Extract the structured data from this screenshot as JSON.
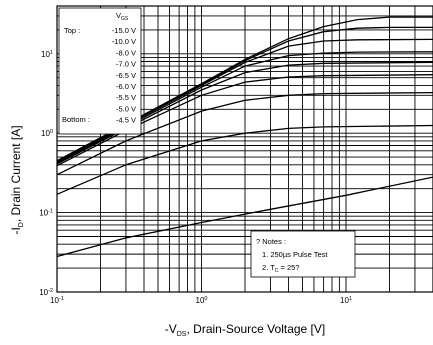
{
  "chart_data": {
    "type": "line",
    "title": "",
    "xlabel": {
      "prefix": "-V",
      "sub": "DS",
      "suffix": ", Drain-Source Voltage [V]"
    },
    "ylabel": {
      "prefix": "-I",
      "sub": "D",
      "suffix": ", Drain Current [A]"
    },
    "x_scale": "log",
    "y_scale": "log",
    "xlim": [
      0.1,
      40
    ],
    "ylim": [
      0.01,
      40
    ],
    "x_ticks": [
      {
        "base": "10",
        "exp": "-1",
        "value": 0.1
      },
      {
        "base": "10",
        "exp": "0",
        "value": 1
      },
      {
        "base": "10",
        "exp": "1",
        "value": 10
      }
    ],
    "y_ticks": [
      {
        "base": "10",
        "exp": "-2",
        "value": 0.01
      },
      {
        "base": "10",
        "exp": "-1",
        "value": 0.1
      },
      {
        "base": "10",
        "exp": "0",
        "value": 1
      },
      {
        "base": "10",
        "exp": "1",
        "value": 10
      }
    ],
    "grid": true,
    "legend": {
      "position": "top-left",
      "header": {
        "prefix": "V",
        "sub": "GS"
      },
      "top_label": "Top :",
      "bottom_label": "Bottom :",
      "entries": [
        "-15.0 V",
        "-10.0 V",
        "-8.0 V",
        "-7.0 V",
        "-6.5 V",
        "-6.0 V",
        "-5.5 V",
        "-5.0 V",
        "-4.5 V"
      ]
    },
    "notes": {
      "position": "bottom-right",
      "title": "? Notes :",
      "items": [
        "1. 250µs Pulse Test",
        "2. T<sub>C</sub> = 25?"
      ],
      "item1": "1. 250µs Pulse Test",
      "item2_prefix": "2. T",
      "item2_sub": "C",
      "item2_suffix": " = 25?"
    },
    "series": [
      {
        "values": [
          [
            0.1,
            0.45
          ],
          [
            0.3,
            1.3
          ],
          [
            1,
            4.2
          ],
          [
            2,
            8.5
          ],
          [
            4,
            15.5
          ],
          [
            7,
            22
          ],
          [
            12,
            27
          ],
          [
            20,
            29
          ],
          [
            40,
            29
          ]
        ]
      },
      {
        "values": [
          [
            0.1,
            0.44
          ],
          [
            0.3,
            1.28
          ],
          [
            1,
            4.1
          ],
          [
            2,
            8.2
          ],
          [
            4,
            14.5
          ],
          [
            7,
            19
          ],
          [
            12,
            21
          ],
          [
            20,
            21.5
          ],
          [
            40,
            21.5
          ]
        ]
      },
      {
        "values": [
          [
            0.1,
            0.43
          ],
          [
            0.3,
            1.25
          ],
          [
            1,
            4.0
          ],
          [
            2,
            7.8
          ],
          [
            4,
            12.5
          ],
          [
            7,
            14.5
          ],
          [
            12,
            15
          ],
          [
            40,
            15.2
          ]
        ]
      },
      {
        "values": [
          [
            0.1,
            0.42
          ],
          [
            0.3,
            1.2
          ],
          [
            1,
            3.8
          ],
          [
            2,
            7.0
          ],
          [
            4,
            9.5
          ],
          [
            7,
            10.2
          ],
          [
            12,
            10.5
          ],
          [
            40,
            10.6
          ]
        ]
      },
      {
        "values": [
          [
            0.1,
            0.41
          ],
          [
            0.3,
            1.15
          ],
          [
            1,
            3.5
          ],
          [
            2,
            5.8
          ],
          [
            4,
            7.2
          ],
          [
            7,
            7.6
          ],
          [
            40,
            7.8
          ]
        ]
      },
      {
        "values": [
          [
            0.1,
            0.39
          ],
          [
            0.3,
            1.08
          ],
          [
            1,
            3.0
          ],
          [
            2,
            4.4
          ],
          [
            4,
            5.1
          ],
          [
            7,
            5.3
          ],
          [
            40,
            5.45
          ]
        ]
      },
      {
        "values": [
          [
            0.1,
            0.3
          ],
          [
            0.3,
            0.8
          ],
          [
            1,
            1.9
          ],
          [
            2,
            2.6
          ],
          [
            4,
            3.0
          ],
          [
            7,
            3.15
          ],
          [
            40,
            3.25
          ]
        ]
      },
      {
        "values": [
          [
            0.1,
            0.17
          ],
          [
            0.3,
            0.4
          ],
          [
            1,
            0.8
          ],
          [
            2,
            1.0
          ],
          [
            4,
            1.15
          ],
          [
            7,
            1.2
          ],
          [
            40,
            1.25
          ]
        ]
      },
      {
        "values": [
          [
            0.1,
            0.028
          ],
          [
            0.3,
            0.048
          ],
          [
            1,
            0.075
          ],
          [
            3,
            0.11
          ],
          [
            10,
            0.165
          ],
          [
            40,
            0.28
          ]
        ]
      }
    ]
  }
}
